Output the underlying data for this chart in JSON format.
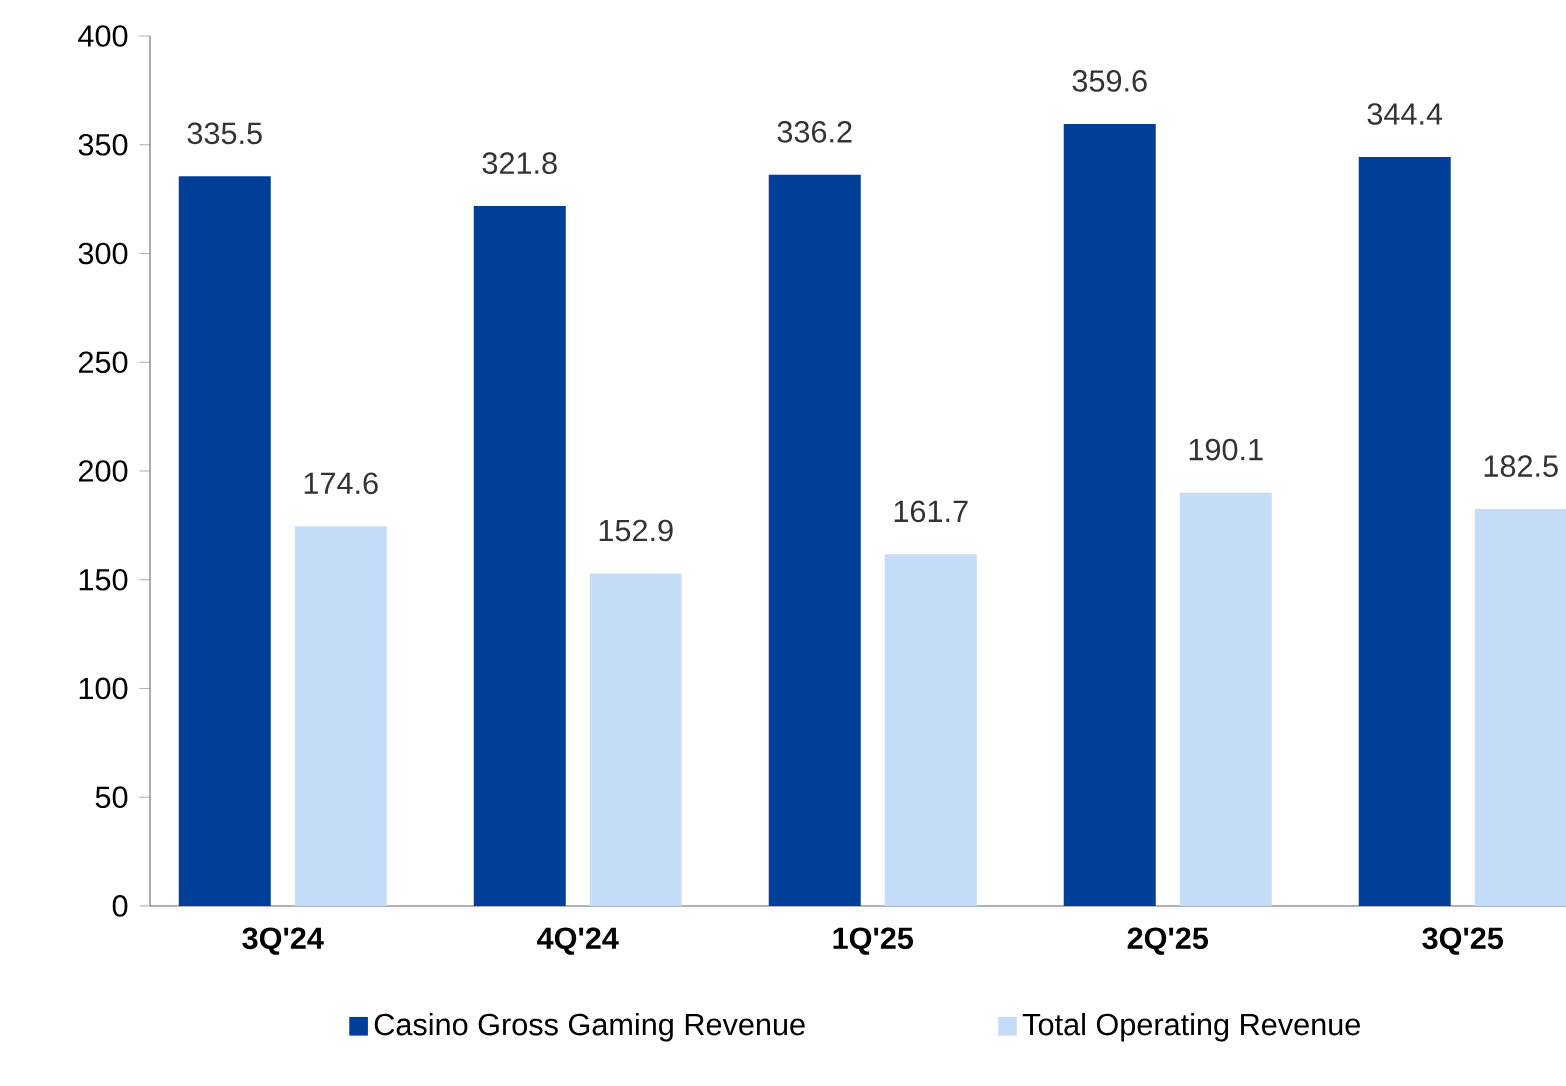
{
  "chart_data": {
    "type": "bar",
    "categories": [
      "3Q'24",
      "4Q'24",
      "1Q'25",
      "2Q'25",
      "3Q'25"
    ],
    "series": [
      {
        "name": "Casino Gross Gaming Revenue",
        "color": "#003f98",
        "values": [
          335.5,
          321.8,
          336.2,
          359.6,
          344.4
        ]
      },
      {
        "name": "Total Operating Revenue",
        "color": "#c5dcf8",
        "values": [
          174.6,
          152.9,
          161.7,
          190.1,
          182.5
        ]
      }
    ],
    "ylim": [
      0,
      400
    ],
    "yticks": [
      0,
      50,
      100,
      150,
      200,
      250,
      300,
      350,
      400
    ],
    "grid": false,
    "legend": "bottom",
    "data_labels": true
  }
}
